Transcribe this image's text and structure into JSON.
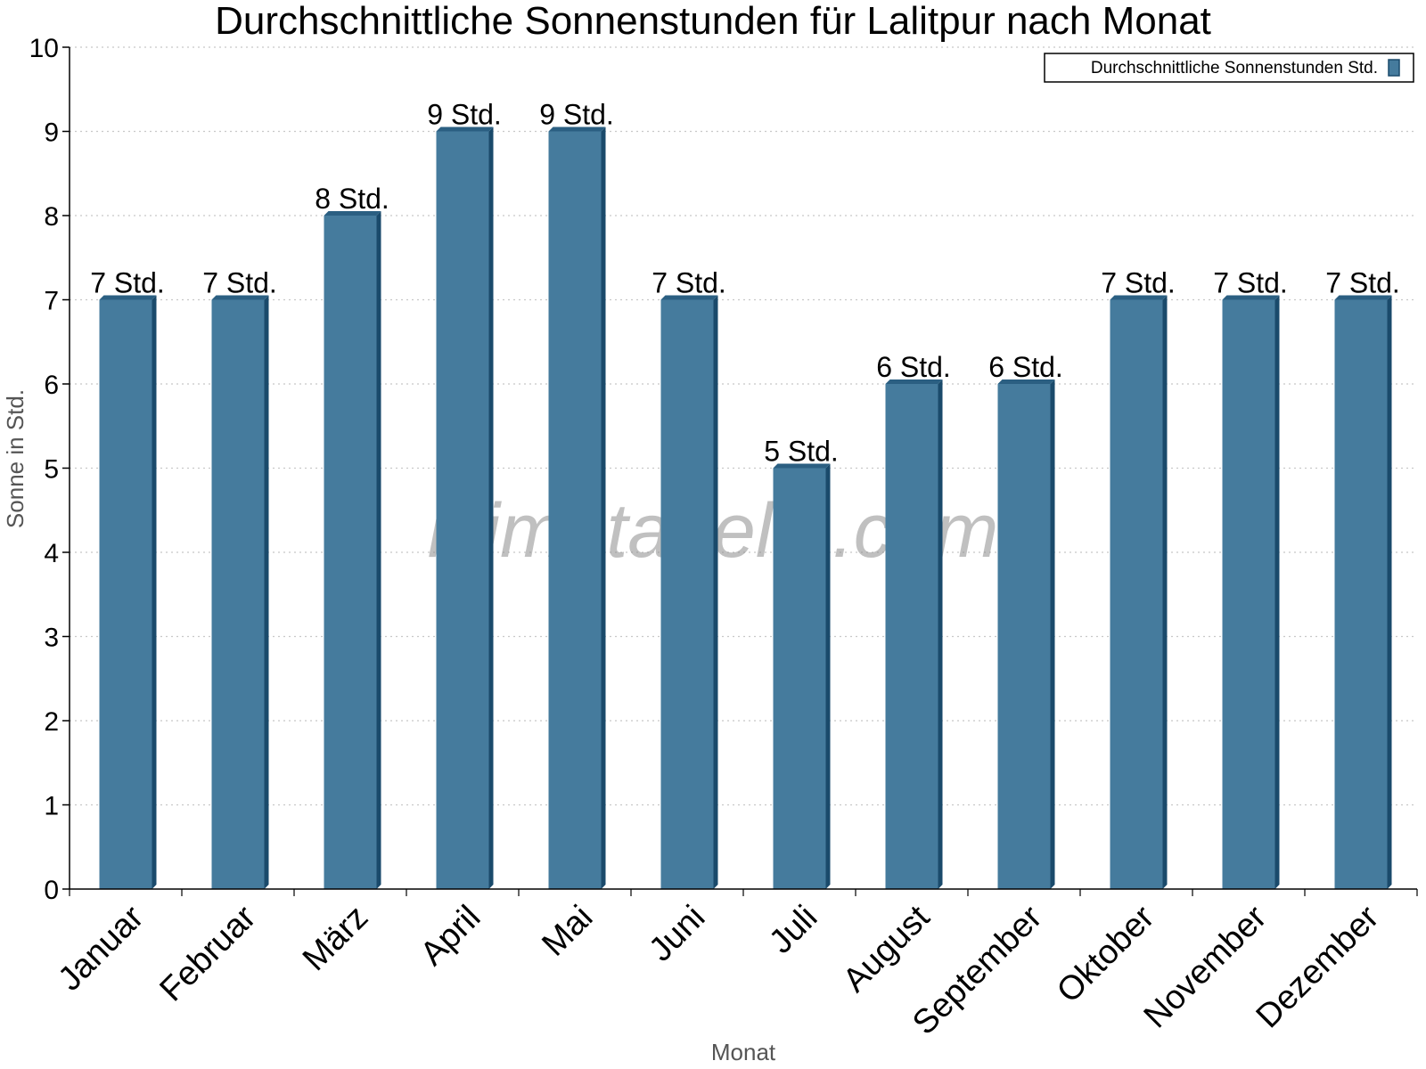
{
  "chart_data": {
    "type": "bar",
    "title": "Durchschnittliche Sonnenstunden für Lalitpur nach Monat",
    "xlabel": "Monat",
    "ylabel": "Sonne in Std.",
    "categories": [
      "Januar",
      "Februar",
      "März",
      "April",
      "Mai",
      "Juni",
      "Juli",
      "August",
      "September",
      "Oktober",
      "November",
      "Dezember"
    ],
    "series": [
      {
        "name": "Durchschnittliche Sonnenstunden Std.",
        "values": [
          7,
          7,
          8,
          9,
          9,
          7,
          5,
          6,
          6,
          7,
          7,
          7
        ],
        "labels": [
          "7 Std.",
          "7 Std.",
          "8 Std.",
          "9 Std.",
          "9 Std.",
          "7 Std.",
          "5 Std.",
          "6 Std.",
          "6 Std.",
          "7 Std.",
          "7 Std.",
          "7 Std."
        ]
      }
    ],
    "ylim": [
      0,
      10
    ],
    "yticks": [
      "0",
      "1",
      "2",
      "3",
      "4",
      "5",
      "6",
      "7",
      "8",
      "9",
      "10"
    ],
    "grid": true,
    "legend_position": "top-right",
    "colors": {
      "bar_face": "#457b9d",
      "bar_side": "#1a4a6b",
      "bar_top": "#2b5f82",
      "grid": "#c8c8c8"
    }
  },
  "watermark": "klimatabelle.com"
}
